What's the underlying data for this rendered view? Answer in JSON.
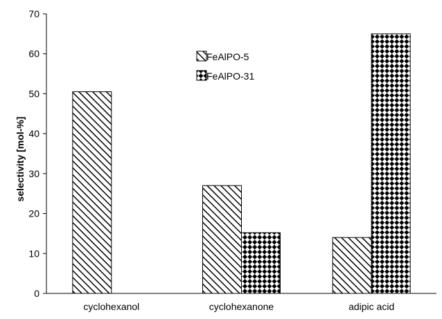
{
  "chart_data": {
    "type": "bar",
    "categories": [
      "cyclohexanol",
      "cyclohexanone",
      "adipic acid"
    ],
    "series": [
      {
        "name": "FeAlPO-5",
        "values": [
          50.5,
          27,
          14
        ],
        "pattern": "diagonal-hatch"
      },
      {
        "name": "FeAlPO-31",
        "values": [
          0,
          15.2,
          65
        ],
        "pattern": "checkerboard"
      }
    ],
    "title": "",
    "xlabel": "",
    "ylabel": "selectivity [mol-%]",
    "ylim": [
      0,
      70
    ],
    "yticks": [
      0,
      10,
      20,
      30,
      40,
      50,
      60,
      70
    ],
    "grid": false,
    "legend_position": "top-center"
  }
}
